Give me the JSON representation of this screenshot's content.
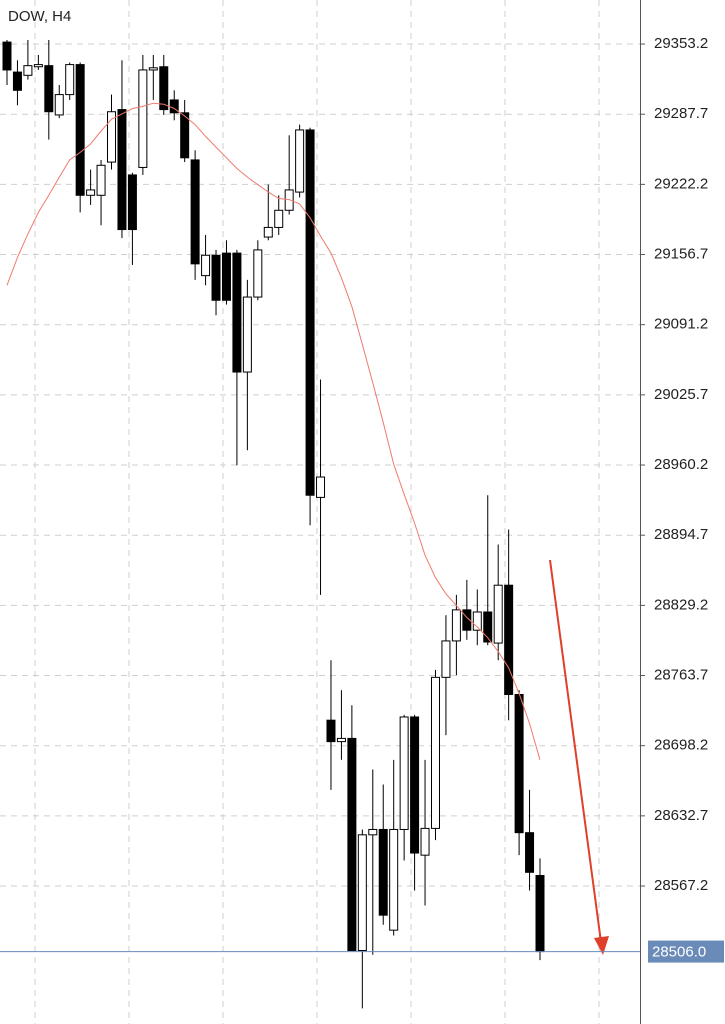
{
  "chart_data": {
    "type": "candlestick",
    "title": "DOW, H4",
    "open": [
      29355,
      29327,
      29324,
      29332,
      29333,
      29287,
      29306,
      29334,
      29212,
      29212,
      29243,
      29292,
      29231,
      29238,
      29329,
      29332,
      29301,
      29289,
      29245,
      29137,
      29156,
      29158,
      29158,
      29047,
      29117,
      29173,
      29182,
      29198,
      29215,
      29273,
      28930,
      28722,
      28702,
      28705,
      28507,
      28615,
      28620,
      28526,
      28620,
      28725,
      28596,
      28621,
      28762,
      28796,
      28825,
      28806,
      28823,
      28794,
      28848,
      28746,
      28617,
      28577
    ],
    "high": [
      29357,
      29338,
      29357,
      29343,
      29357,
      29315,
      29336,
      29336,
      29236,
      29245,
      29306,
      29338,
      29233,
      29343,
      29343,
      29343,
      29310,
      29301,
      29254,
      29175,
      29161,
      29170,
      29161,
      29133,
      29170,
      29222,
      29212,
      29268,
      29278,
      29275,
      29040,
      28778,
      28750,
      28736,
      28620,
      28676,
      28662,
      28685,
      28727,
      28727,
      28685,
      28769,
      28820,
      28839,
      28853,
      28844,
      28932,
      28886,
      28900,
      28750,
      28657,
      28593
    ],
    "low": [
      29315,
      29296,
      29320,
      29329,
      29264,
      29284,
      29301,
      29196,
      29203,
      29184,
      29236,
      29172,
      29147,
      29231,
      29301,
      29287,
      29282,
      29243,
      29133,
      29128,
      29100,
      29110,
      28960,
      28974,
      29114,
      29170,
      29175,
      29194,
      29210,
      28904,
      28839,
      28657,
      28685,
      28507,
      28453,
      28503,
      28531,
      28521,
      28591,
      28563,
      28549,
      28610,
      28708,
      28764,
      28797,
      28792,
      28792,
      28778,
      28722,
      28596,
      28563,
      28498
    ],
    "close": [
      29329,
      29310,
      29333,
      29334,
      29290,
      29306,
      29334,
      29212,
      29217,
      29240,
      29290,
      29180,
      29180,
      29329,
      29331,
      29292,
      29289,
      29247,
      29148,
      29156,
      29114,
      29114,
      29047,
      29117,
      29161,
      29182,
      29198,
      29217,
      29273,
      28932,
      28949,
      28702,
      28705,
      28507,
      28615,
      28620,
      28540,
      28620,
      28725,
      28598,
      28621,
      28762,
      28796,
      28825,
      28806,
      28823,
      28795,
      28848,
      28746,
      28617,
      28580,
      28506
    ],
    "moving_average": {
      "color": "#f07a6e",
      "values": [
        29128,
        29154,
        29176,
        29196,
        29212,
        29229,
        29245,
        29252,
        29260,
        29272,
        29283,
        29288,
        29293,
        29295,
        29298,
        29297,
        29293,
        29286,
        29278,
        29267,
        29257,
        29247,
        29237,
        29229,
        29222,
        29215,
        29209,
        29208,
        29204,
        29191,
        29174,
        29158,
        29135,
        29108,
        29073,
        29037,
        29000,
        28961,
        28933,
        28906,
        28876,
        28855,
        28840,
        28829,
        28818,
        28809,
        28799,
        28786,
        28771,
        28747,
        28719,
        28685
      ]
    },
    "up_color": "#ffffff",
    "down_color": "#000000",
    "ylim": [
      28438.4,
      29394.3
    ],
    "yticks": [
      29353.2,
      29287.7,
      29222.2,
      29156.7,
      29091.2,
      29025.7,
      28960.2,
      28894.7,
      28829.2,
      28763.7,
      28698.2,
      28632.7,
      28567.2
    ],
    "grid": true,
    "last_price": {
      "value": 28506,
      "label": "28506.0",
      "color": "#6a8bb8"
    }
  }
}
